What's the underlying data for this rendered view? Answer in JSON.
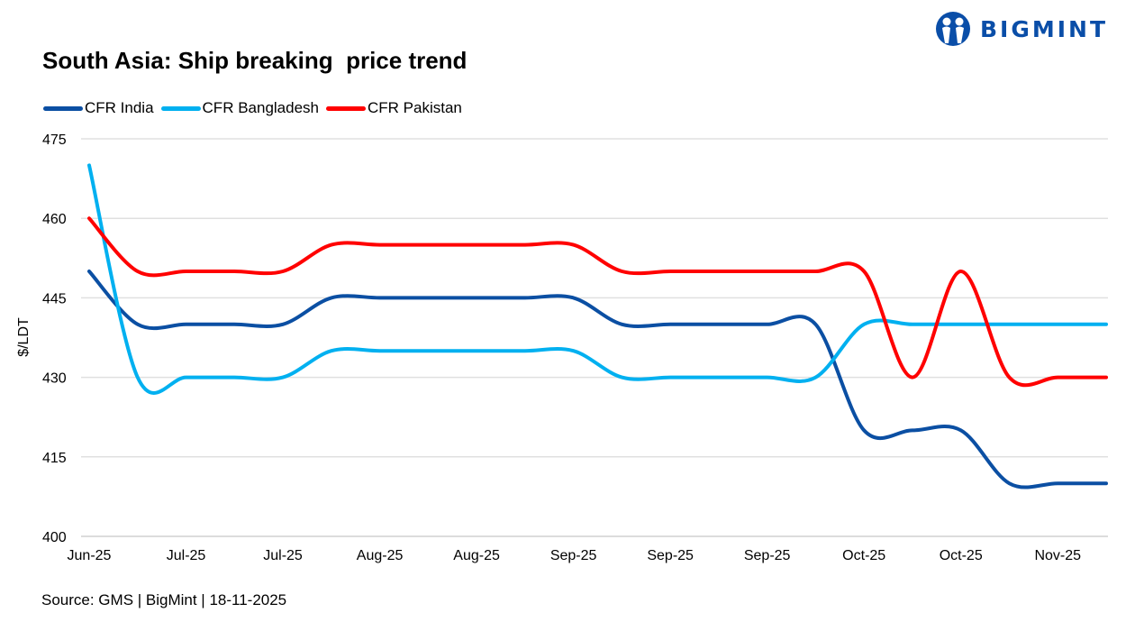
{
  "title": "South Asia: Ship breaking  price trend",
  "logo": {
    "text": "BIGMINT",
    "color": "#0a4ea8"
  },
  "source": "Source: GMS | BigMint  | 18-11-2025",
  "chart_data": {
    "type": "line",
    "title": "South Asia: Ship breaking  price trend",
    "ylabel": "$/LDT",
    "xlabel": "",
    "ylim": [
      400,
      475
    ],
    "yticks": [
      "475",
      "460",
      "445",
      "430",
      "415",
      "400"
    ],
    "grid": true,
    "smoothed": true,
    "legend_position": "top-left",
    "x_tick_labels": [
      "Jun-25",
      "Jul-25",
      "Jul-25",
      "Aug-25",
      "Aug-25",
      "Sep-25",
      "Sep-25",
      "Sep-25",
      "Oct-25",
      "Oct-25",
      "Nov-25"
    ],
    "series": [
      {
        "name": "CFR India",
        "color": "#0b4fa3",
        "values": [
          450,
          440,
          440,
          440,
          440,
          445,
          445,
          445,
          445,
          445,
          445,
          440,
          440,
          440,
          440,
          440,
          420,
          420,
          420,
          410,
          410,
          410
        ]
      },
      {
        "name": "CFR Bangladesh",
        "color": "#00b0f0",
        "values": [
          470,
          430,
          430,
          430,
          430,
          435,
          435,
          435,
          435,
          435,
          435,
          430,
          430,
          430,
          430,
          430,
          440,
          440,
          440,
          440,
          440,
          440
        ]
      },
      {
        "name": "CFR Pakistan",
        "color": "#ff0000",
        "values": [
          460,
          450,
          450,
          450,
          450,
          455,
          455,
          455,
          455,
          455,
          455,
          450,
          450,
          450,
          450,
          450,
          450,
          430,
          450,
          430,
          430,
          430
        ]
      }
    ]
  }
}
